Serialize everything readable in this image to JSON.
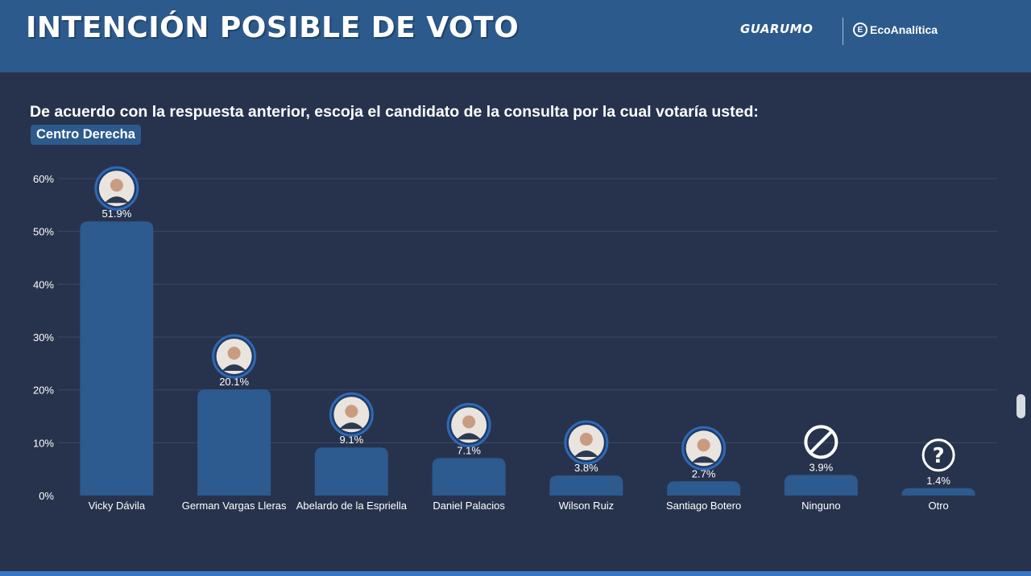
{
  "header": {
    "title": "INTENCIÓN POSIBLE DE VOTO",
    "brand_guarumo": "GUARUMO",
    "brand_eco": "EcoAnalítica",
    "brand_eco_icon": "E"
  },
  "question": "De acuerdo con  la respuesta anterior, escoja el candidato de la consulta por la cual votaría usted:",
  "tag": "Centro Derecha",
  "colors": {
    "background": "#27334d",
    "header": "#2c5a8c",
    "bar": "#2d5a8f",
    "grid": "#3d4a63",
    "text": "#ffffff"
  },
  "chart_data": {
    "type": "bar",
    "categories": [
      "Vicky Dávila",
      "German Vargas Lleras",
      "Abelardo de la Espriella",
      "Daniel Palacios",
      "Wilson Ruiz",
      "Santiago Botero",
      "Ninguno",
      "Otro"
    ],
    "values": [
      51.9,
      20.1,
      9.1,
      7.1,
      3.8,
      2.7,
      3.9,
      1.4
    ],
    "value_labels": [
      "51.9%",
      "20.1%",
      "9.1%",
      "7.1%",
      "3.8%",
      "2.7%",
      "3.9%",
      "1.4%"
    ],
    "markers": [
      "avatar-photo",
      "avatar-photo",
      "avatar-photo",
      "avatar-photo",
      "avatar-photo",
      "avatar-photo",
      "no-symbol-icon",
      "question-mark-icon"
    ],
    "yticks": [
      0,
      10,
      20,
      30,
      40,
      50,
      60
    ],
    "ytick_labels": [
      "0%",
      "10%",
      "20%",
      "30%",
      "40%",
      "50%",
      "60%"
    ],
    "ylim": [
      0,
      60
    ],
    "grid": true,
    "legend": "none"
  }
}
